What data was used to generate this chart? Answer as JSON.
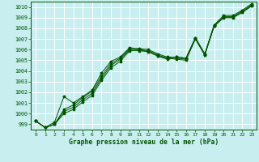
{
  "xlabel": "Graphe pression niveau de la mer (hPa)",
  "xlim": [
    -0.5,
    23.5
  ],
  "ylim": [
    998.5,
    1010.5
  ],
  "yticks": [
    999,
    1000,
    1001,
    1002,
    1003,
    1004,
    1005,
    1006,
    1007,
    1008,
    1009,
    1010
  ],
  "xticks": [
    0,
    1,
    2,
    3,
    4,
    5,
    6,
    7,
    8,
    9,
    10,
    11,
    12,
    13,
    14,
    15,
    16,
    17,
    18,
    19,
    20,
    21,
    22,
    23
  ],
  "bg_color": "#c8eef0",
  "grid_color": "#ffffff",
  "line_color": "#005500",
  "line1_y": [
    999.3,
    998.7,
    999.0,
    1000.0,
    1000.4,
    1001.1,
    1001.7,
    1003.1,
    1004.3,
    1004.9,
    1005.9,
    1005.9,
    1005.8,
    1005.4,
    1005.1,
    1005.2,
    1005.1,
    1007.0,
    1005.5,
    1008.2,
    1009.0,
    1009.0,
    1009.5,
    1010.1
  ],
  "line2_y": [
    999.3,
    998.7,
    999.0,
    1000.2,
    1000.6,
    1001.3,
    1001.9,
    1003.3,
    1004.5,
    1005.1,
    1006.0,
    1006.0,
    1005.9,
    1005.5,
    1005.2,
    1005.3,
    1005.2,
    1007.1,
    1005.6,
    1008.3,
    1009.1,
    1009.1,
    1009.6,
    1010.2
  ],
  "line3_y": [
    999.3,
    998.7,
    999.0,
    1000.4,
    1000.8,
    1001.5,
    1002.1,
    1003.5,
    1004.7,
    1005.2,
    1006.1,
    1006.1,
    1006.0,
    1005.6,
    1005.3,
    1005.3,
    1005.2,
    1007.1,
    1005.6,
    1008.3,
    1009.2,
    1009.2,
    1009.7,
    1010.3
  ],
  "line4_y": [
    999.3,
    998.7,
    999.2,
    1001.6,
    1001.0,
    1001.6,
    1002.2,
    1003.8,
    1004.9,
    1005.3,
    1006.2,
    1006.0,
    1005.8,
    1005.4,
    1005.2,
    1005.1,
    1005.0,
    1007.0,
    1005.5,
    1008.2,
    1009.0,
    1009.0,
    1009.5,
    1010.1
  ]
}
